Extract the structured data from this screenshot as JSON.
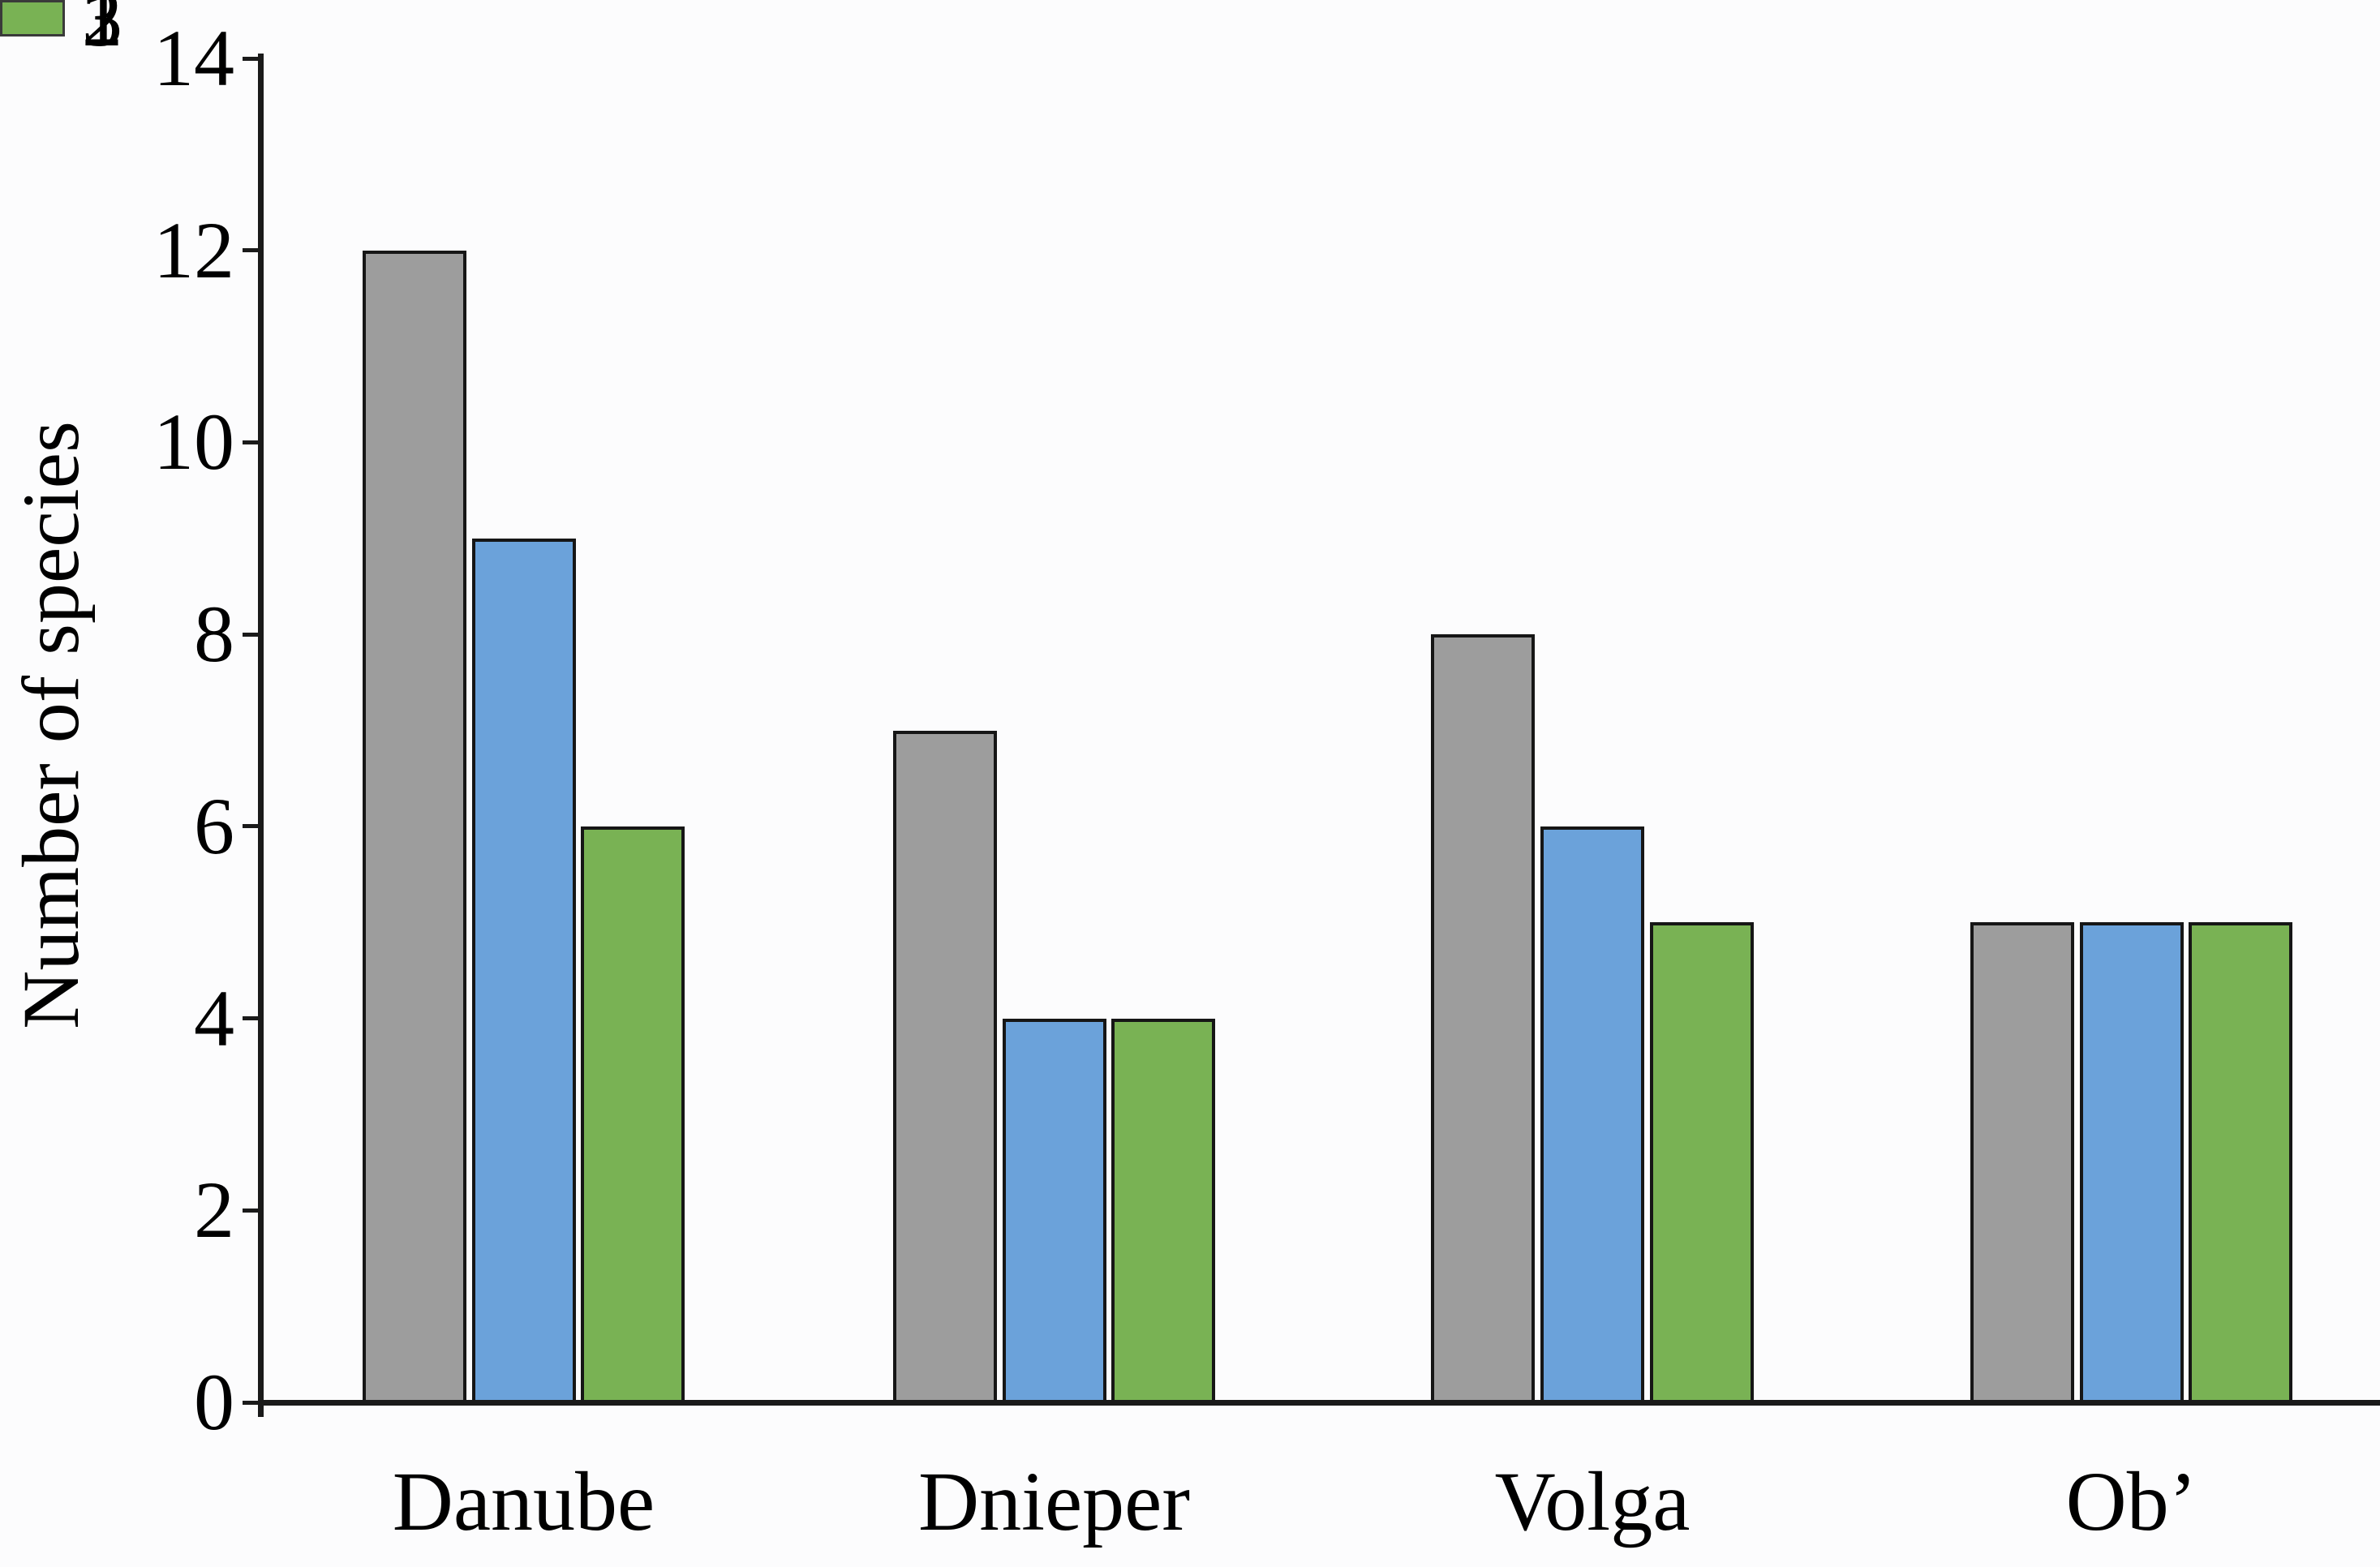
{
  "chart_data": {
    "type": "bar",
    "title": "",
    "categories": [
      "Danube",
      "Dnieper",
      "Volga",
      "Ob’"
    ],
    "series": [
      {
        "name": "1",
        "color": "#9d9d9d",
        "values": [
          12,
          7,
          8,
          5
        ]
      },
      {
        "name": "2",
        "color": "#6ba2da",
        "values": [
          9,
          4,
          6,
          5
        ]
      },
      {
        "name": "3",
        "color": "#79b254",
        "values": [
          6,
          4,
          5,
          5
        ]
      }
    ],
    "xlabel": "",
    "ylabel": "Number of species",
    "ylim": [
      0,
      14
    ],
    "yticks": [
      0,
      2,
      4,
      6,
      8,
      10,
      12,
      14
    ],
    "grid": false,
    "legend_position": "upper-center",
    "colors": {
      "axis": "#1a1a1a",
      "bar_border": "#161616",
      "background": "#fcfcfd",
      "text": "#000000"
    }
  }
}
